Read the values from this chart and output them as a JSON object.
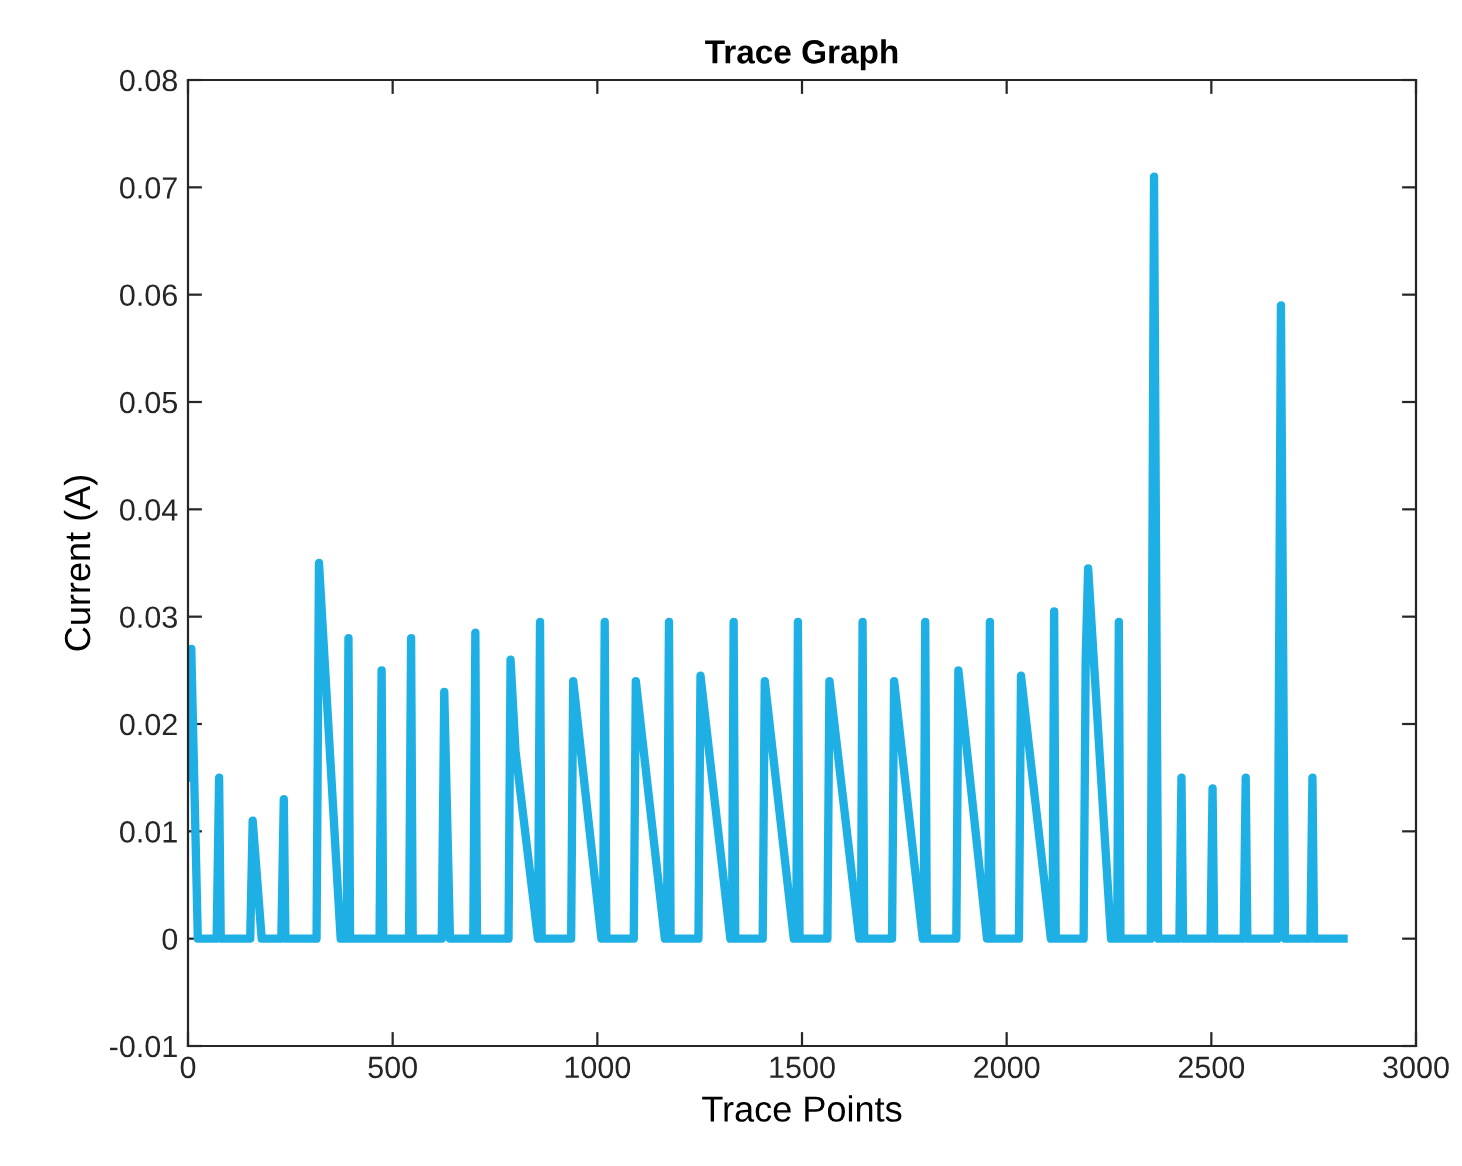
{
  "chart_data": {
    "type": "line",
    "title": "Trace Graph",
    "xlabel": "Trace Points",
    "ylabel": "Current (A)",
    "xlim": [
      0,
      3000
    ],
    "xticks": [
      0,
      500,
      1000,
      1500,
      2000,
      2500,
      3000
    ],
    "ylim": [
      -0.01,
      0.08
    ],
    "yticks": [
      {
        "value": -0.01,
        "label": "-0.01"
      },
      0,
      0.01,
      0.02,
      0.03,
      0.04,
      0.05,
      0.06,
      0.07,
      0.08
    ],
    "grid": false,
    "marker": "none",
    "line_style": "solid",
    "series": [
      {
        "color": "#1eb0e4",
        "x": [
          0,
          8,
          24,
          70,
          76,
          80,
          152,
          158,
          180,
          228,
          234,
          238,
          314,
          320,
          373,
          388,
          392,
          396,
          468,
          473,
          477,
          540,
          545,
          549,
          620,
          626,
          640,
          697,
          702,
          706,
          783,
          788,
          800,
          855,
          860,
          864,
          936,
          941,
          1010,
          1014,
          1018,
          1022,
          1089,
          1094,
          1165,
          1170,
          1175,
          1179,
          1247,
          1252,
          1325,
          1329,
          1333,
          1337,
          1404,
          1409,
          1480,
          1486,
          1490,
          1494,
          1562,
          1567,
          1640,
          1644,
          1648,
          1652,
          1720,
          1725,
          1795,
          1797,
          1801,
          1805,
          1877,
          1882,
          1952,
          1955,
          1959,
          1963,
          2030,
          2035,
          2108,
          2112,
          2116,
          2120,
          2188,
          2193,
          2199,
          2255,
          2270,
          2274,
          2278,
          2352,
          2360,
          2370,
          2422,
          2427,
          2431,
          2498,
          2503,
          2507,
          2579,
          2584,
          2588,
          2662,
          2670,
          2680,
          2742,
          2747,
          2751,
          2823
        ],
        "values": [
          0.015,
          0.027,
          0,
          0,
          0.015,
          0,
          0,
          0.011,
          0,
          0,
          0.013,
          0,
          0,
          0.035,
          0,
          0,
          0.028,
          0,
          0,
          0.025,
          0,
          0,
          0.028,
          0,
          0,
          0.023,
          0,
          0,
          0.0285,
          0,
          0,
          0.026,
          0.0175,
          0,
          0.0295,
          0,
          0,
          0.024,
          0,
          0,
          0.0295,
          0,
          0,
          0.024,
          0,
          0,
          0.0295,
          0,
          0,
          0.0245,
          0,
          0,
          0.0295,
          0,
          0,
          0.024,
          0,
          0,
          0.0295,
          0,
          0,
          0.024,
          0,
          0,
          0.0295,
          0,
          0,
          0.024,
          0,
          0,
          0.0295,
          0,
          0,
          0.025,
          0,
          0,
          0.0295,
          0,
          0,
          0.0245,
          0,
          0,
          0.0305,
          0,
          0,
          0.026,
          0.0345,
          0,
          0,
          0.0295,
          0,
          0,
          0.071,
          0,
          0,
          0.015,
          0,
          0,
          0.014,
          0,
          0,
          0.015,
          0,
          0,
          0.059,
          0,
          0,
          0.015,
          0,
          0
        ]
      }
    ]
  }
}
